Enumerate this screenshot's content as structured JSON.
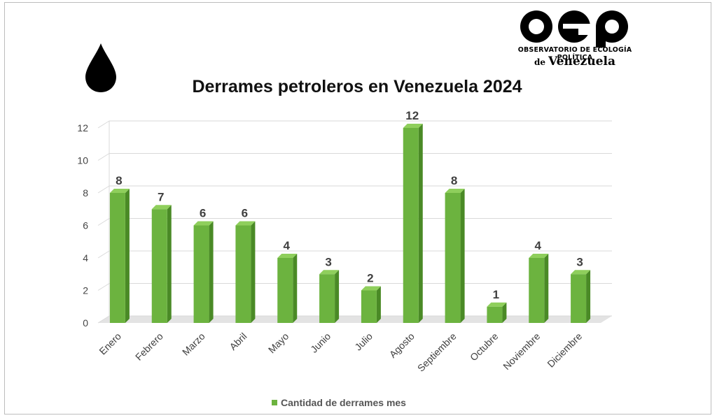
{
  "logo": {
    "letters": "oep",
    "line1": "OBSERVATORIO DE ECOLOGÍA POLÍTICA",
    "line2_prefix": "de",
    "line2": "Venezuela"
  },
  "icons": {
    "drop": "oil-drop-icon"
  },
  "colors": {
    "bar": "#6cb33f",
    "bar_side": "#4a8a26",
    "bar_top": "#8fcf5c",
    "grid": "#d9d9d9"
  },
  "chart_data": {
    "type": "bar",
    "title": "Derrames petroleros en Venezuela 2024",
    "categories": [
      "Enero",
      "Febrero",
      "Marzo",
      "Abril",
      "Mayo",
      "Junio",
      "Julio",
      "Agosto",
      "Septiembre",
      "Octubre",
      "Noviembre",
      "Diciembre"
    ],
    "series": [
      {
        "name": "Cantidad de derrames mes",
        "values": [
          8,
          7,
          6,
          6,
          4,
          3,
          2,
          12,
          8,
          1,
          4,
          3
        ]
      }
    ],
    "ylim": [
      0,
      12
    ],
    "yticks": [
      0,
      2,
      4,
      6,
      8,
      10,
      12
    ],
    "grid": true,
    "legend_position": "bottom",
    "data_labels": true
  }
}
